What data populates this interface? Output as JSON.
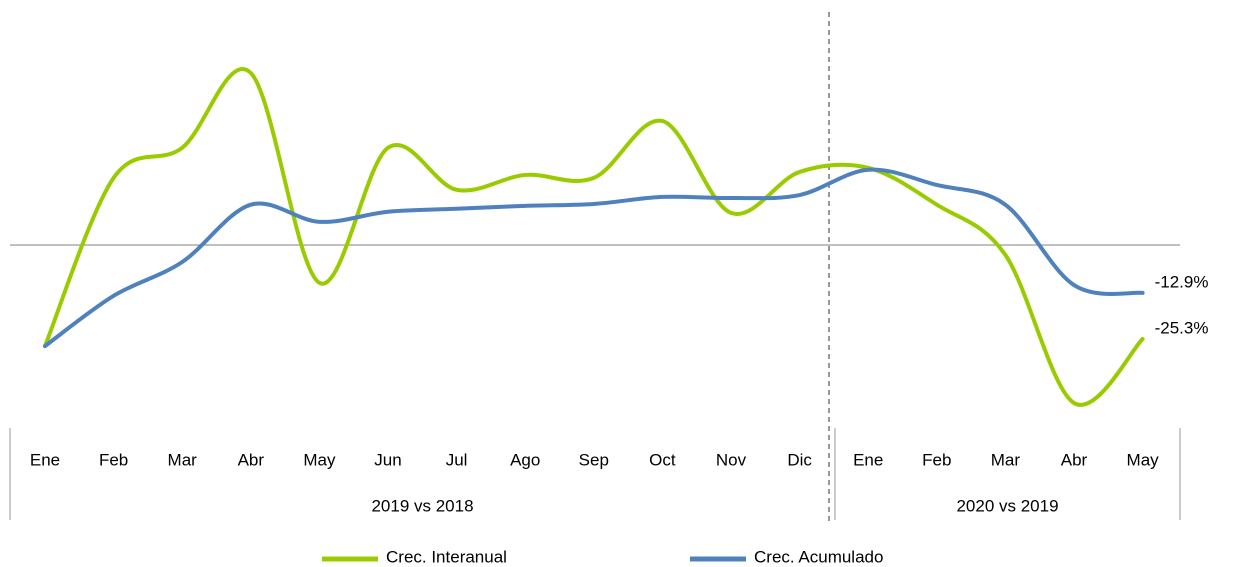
{
  "chart_data": {
    "type": "line",
    "groups": [
      {
        "label": "2019 vs 2018",
        "categories": [
          "Ene",
          "Feb",
          "Mar",
          "Abr",
          "May",
          "Jun",
          "Jul",
          "Ago",
          "Sep",
          "Oct",
          "Nov",
          "Dic"
        ]
      },
      {
        "label": "2020 vs 2019",
        "categories": [
          "Ene",
          "Feb",
          "Mar",
          "Abr",
          "May"
        ]
      }
    ],
    "series": [
      {
        "name": "Crec. Interanual",
        "color": "#99cc00",
        "values": [
          -27.2,
          18.0,
          26.1,
          46.2,
          -10.2,
          26.1,
          14.8,
          18.8,
          18.0,
          33.3,
          8.6,
          19.6,
          20.7,
          10.8,
          -2.7,
          -42.5,
          -25.3
        ],
        "value_labels": [
          null,
          null,
          null,
          null,
          null,
          null,
          null,
          null,
          null,
          null,
          null,
          null,
          null,
          null,
          null,
          null,
          "-25.3%"
        ]
      },
      {
        "name": "Crec. Acumulado",
        "color": "#4f81bd",
        "values": [
          -27.2,
          -13.7,
          -4.6,
          10.8,
          6.2,
          8.9,
          9.7,
          10.5,
          11.0,
          12.9,
          12.6,
          13.4,
          20.2,
          16.1,
          10.8,
          -10.8,
          -12.9
        ],
        "value_labels": [
          null,
          null,
          null,
          null,
          null,
          null,
          null,
          null,
          null,
          null,
          null,
          null,
          null,
          null,
          null,
          null,
          "-12.9%"
        ]
      }
    ],
    "legend": "bottom"
  }
}
